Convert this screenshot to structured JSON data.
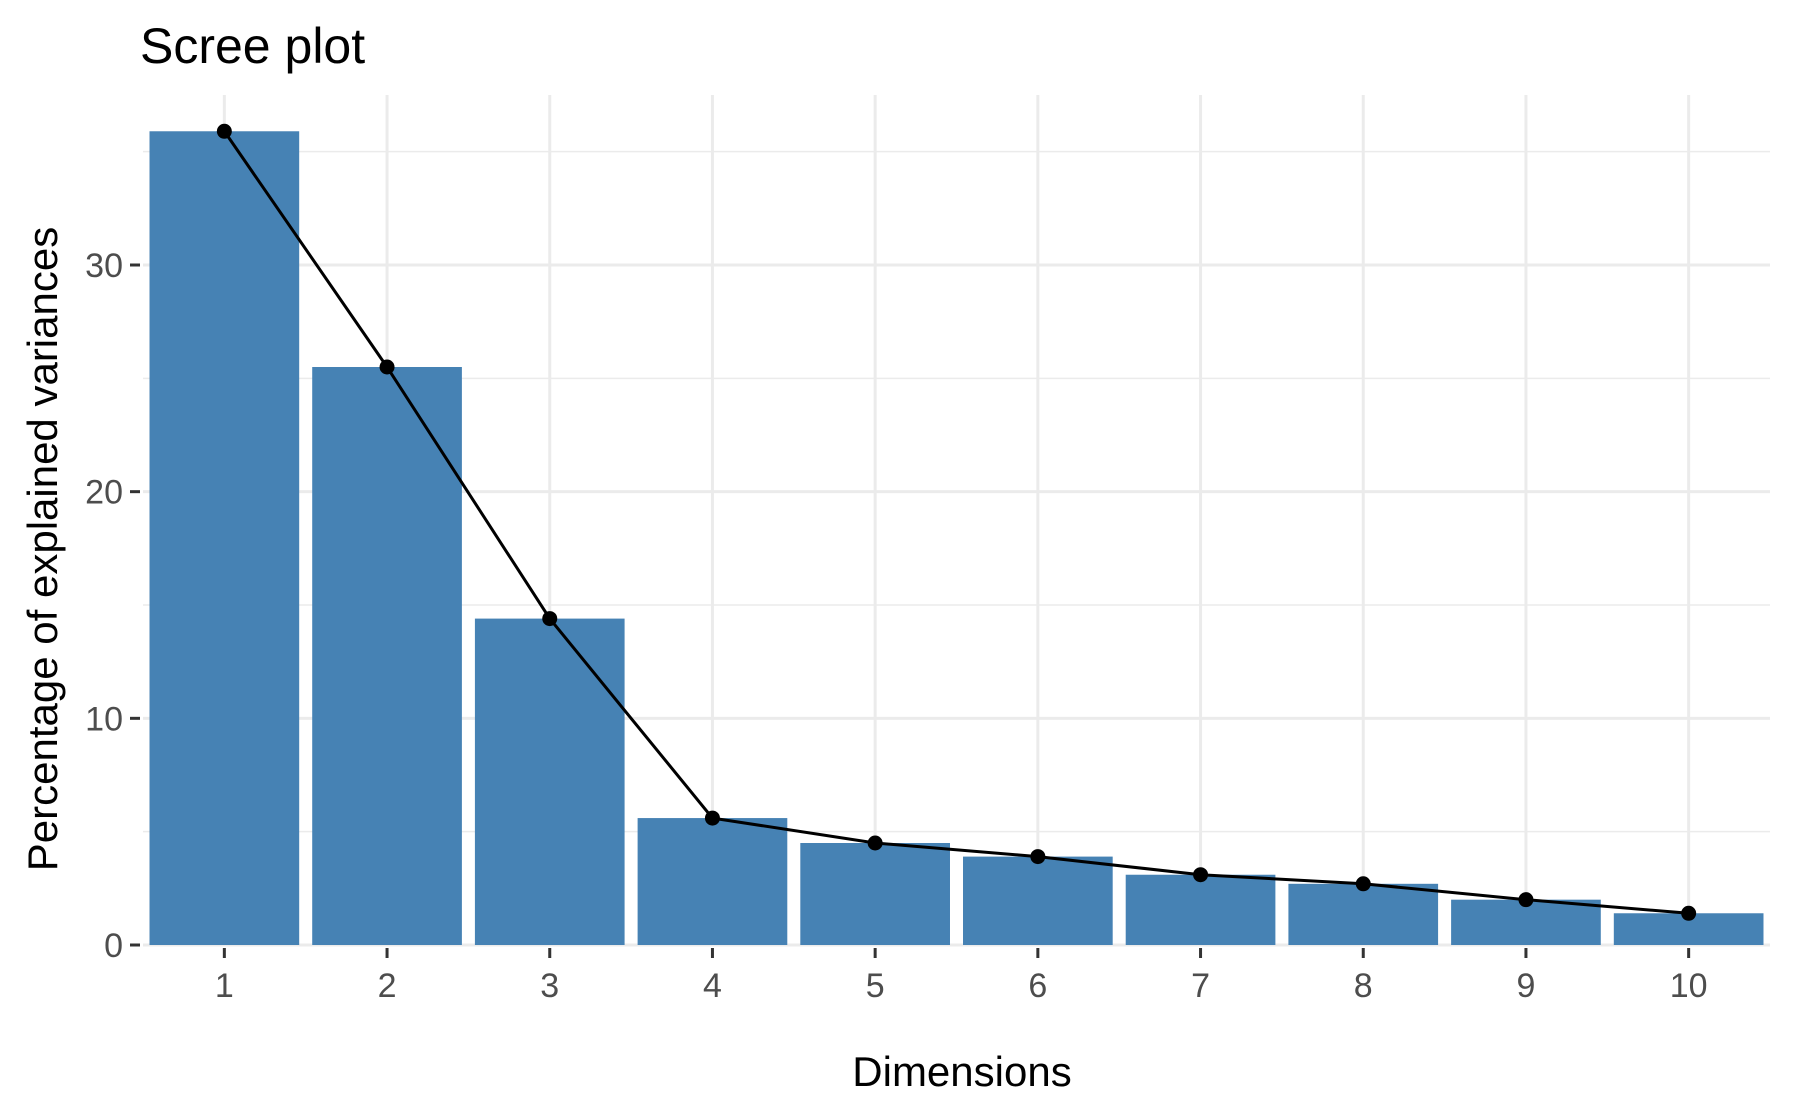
{
  "chart_data": {
    "type": "bar",
    "title": "Scree plot",
    "xlabel": "Dimensions",
    "ylabel": "Percentage of explained variances",
    "categories": [
      "1",
      "2",
      "3",
      "4",
      "5",
      "6",
      "7",
      "8",
      "9",
      "10"
    ],
    "values": [
      35.9,
      25.5,
      14.4,
      5.6,
      4.5,
      3.9,
      3.1,
      2.7,
      2.0,
      1.4
    ],
    "line_overlay": true,
    "ylim": [
      0,
      37.5
    ],
    "yticks": [
      0,
      10,
      20,
      30
    ],
    "grid": true,
    "legend": "none",
    "colors": {
      "bar": "#4682B4",
      "line": "#000000",
      "point": "#000000",
      "grid": "#ebebeb",
      "tick_label": "#4d4d4d"
    }
  }
}
